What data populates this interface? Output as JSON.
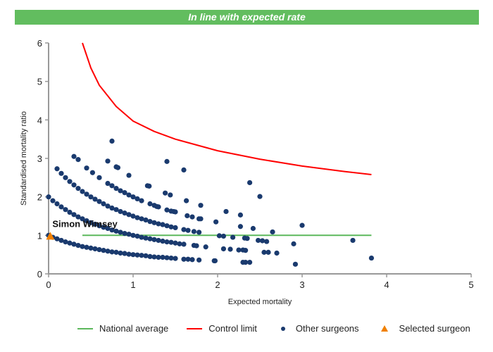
{
  "banner": {
    "text": "In line with expected rate",
    "color": "#62bd5f"
  },
  "chart_data": {
    "type": "scatter",
    "xlabel": "Expected mortality",
    "ylabel": "Standardised mortality ratio",
    "xlim": [
      0,
      5
    ],
    "ylim": [
      0,
      6
    ],
    "xticks": [
      "0",
      "1",
      "2",
      "3",
      "4",
      "5"
    ],
    "yticks": [
      "0",
      "1",
      "2",
      "3",
      "4",
      "5",
      "6"
    ],
    "grid": false,
    "legend_placement": "bottom",
    "colors": {
      "national_average": "#5cb85c",
      "control_limit": "#ff0000",
      "other_surgeons": "#1a3a6e",
      "selected_surgeon": "#f08000"
    },
    "legend": [
      "National average",
      "Control limit",
      "Other surgeons",
      "Selected surgeon"
    ],
    "national_average": {
      "name": "National average",
      "points": [
        [
          0.4,
          1
        ],
        [
          3.82,
          1
        ]
      ]
    },
    "control_limit": {
      "name": "Control limit",
      "points": [
        [
          0.4,
          6.0
        ],
        [
          0.5,
          5.35
        ],
        [
          0.6,
          4.9
        ],
        [
          0.8,
          4.35
        ],
        [
          1.0,
          3.97
        ],
        [
          1.25,
          3.7
        ],
        [
          1.5,
          3.5
        ],
        [
          2.0,
          3.2
        ],
        [
          2.5,
          2.98
        ],
        [
          3.0,
          2.8
        ],
        [
          3.5,
          2.66
        ],
        [
          3.82,
          2.58
        ]
      ]
    },
    "other_surgeons": {
      "name": "Other surgeons",
      "points": [
        [
          0,
          1.0
        ],
        [
          0.05,
          0.95
        ],
        [
          0.1,
          0.91
        ],
        [
          0.15,
          0.87
        ],
        [
          0.2,
          0.83
        ],
        [
          0.25,
          0.8
        ],
        [
          0.3,
          0.77
        ],
        [
          0.35,
          0.74
        ],
        [
          0.4,
          0.71
        ],
        [
          0.45,
          0.69
        ],
        [
          0.5,
          0.67
        ],
        [
          0.55,
          0.65
        ],
        [
          0.6,
          0.63
        ],
        [
          0.65,
          0.61
        ],
        [
          0.7,
          0.59
        ],
        [
          0.75,
          0.57
        ],
        [
          0.8,
          0.56
        ],
        [
          0.85,
          0.54
        ],
        [
          0.9,
          0.53
        ],
        [
          0.95,
          0.51
        ],
        [
          1.0,
          0.5
        ],
        [
          1.05,
          0.49
        ],
        [
          1.1,
          0.48
        ],
        [
          1.15,
          0.47
        ],
        [
          1.2,
          0.45
        ],
        [
          1.25,
          0.44
        ],
        [
          1.3,
          0.43
        ],
        [
          1.35,
          0.43
        ],
        [
          1.4,
          0.42
        ],
        [
          1.45,
          0.41
        ],
        [
          1.5,
          0.4
        ],
        [
          1.6,
          0.38
        ],
        [
          1.65,
          0.38
        ],
        [
          1.7,
          0.37
        ],
        [
          1.78,
          0.36
        ],
        [
          1.96,
          0.34
        ],
        [
          1.97,
          0.34
        ],
        [
          0,
          2.0
        ],
        [
          0.05,
          1.9
        ],
        [
          0.1,
          1.82
        ],
        [
          0.15,
          1.74
        ],
        [
          0.2,
          1.67
        ],
        [
          0.25,
          1.6
        ],
        [
          0.3,
          1.54
        ],
        [
          0.35,
          1.48
        ],
        [
          0.4,
          1.43
        ],
        [
          0.45,
          1.38
        ],
        [
          0.5,
          1.33
        ],
        [
          0.55,
          1.29
        ],
        [
          0.6,
          1.25
        ],
        [
          0.65,
          1.21
        ],
        [
          0.7,
          1.18
        ],
        [
          0.75,
          1.14
        ],
        [
          0.8,
          1.11
        ],
        [
          0.85,
          1.08
        ],
        [
          0.9,
          1.05
        ],
        [
          0.95,
          1.03
        ],
        [
          1.0,
          1.0
        ],
        [
          1.05,
          0.98
        ],
        [
          1.1,
          0.95
        ],
        [
          1.15,
          0.93
        ],
        [
          1.2,
          0.91
        ],
        [
          1.25,
          0.89
        ],
        [
          1.3,
          0.87
        ],
        [
          1.35,
          0.85
        ],
        [
          1.4,
          0.83
        ],
        [
          1.45,
          0.82
        ],
        [
          1.5,
          0.8
        ],
        [
          1.55,
          0.78
        ],
        [
          1.6,
          0.77
        ],
        [
          1.72,
          0.74
        ],
        [
          1.75,
          0.73
        ],
        [
          1.86,
          0.7
        ],
        [
          0.1,
          2.73
        ],
        [
          0.15,
          2.61
        ],
        [
          0.2,
          2.5
        ],
        [
          0.25,
          2.4
        ],
        [
          0.3,
          2.31
        ],
        [
          0.35,
          2.22
        ],
        [
          0.4,
          2.14
        ],
        [
          0.45,
          2.07
        ],
        [
          0.5,
          2.0
        ],
        [
          0.55,
          1.94
        ],
        [
          0.6,
          1.88
        ],
        [
          0.65,
          1.82
        ],
        [
          0.7,
          1.76
        ],
        [
          0.75,
          1.71
        ],
        [
          0.8,
          1.67
        ],
        [
          0.85,
          1.62
        ],
        [
          0.9,
          1.58
        ],
        [
          0.95,
          1.54
        ],
        [
          1.0,
          1.5
        ],
        [
          1.05,
          1.46
        ],
        [
          1.1,
          1.43
        ],
        [
          1.15,
          1.4
        ],
        [
          1.2,
          1.36
        ],
        [
          1.25,
          1.33
        ],
        [
          1.3,
          1.3
        ],
        [
          1.35,
          1.28
        ],
        [
          1.4,
          1.25
        ],
        [
          1.45,
          1.22
        ],
        [
          1.5,
          1.2
        ],
        [
          1.6,
          1.15
        ],
        [
          1.65,
          1.13
        ],
        [
          1.72,
          1.1
        ],
        [
          1.78,
          1.08
        ],
        [
          0.3,
          3.05
        ],
        [
          0.7,
          2.35
        ],
        [
          0.75,
          2.29
        ],
        [
          0.8,
          2.22
        ],
        [
          0.85,
          2.16
        ],
        [
          0.9,
          2.11
        ],
        [
          0.95,
          2.05
        ],
        [
          1.0,
          2.0
        ],
        [
          1.05,
          1.95
        ],
        [
          1.1,
          1.9
        ],
        [
          1.2,
          1.82
        ],
        [
          1.25,
          1.78
        ],
        [
          1.3,
          1.74
        ],
        [
          1.4,
          1.66
        ],
        [
          1.45,
          1.63
        ],
        [
          1.5,
          1.61
        ],
        [
          0.75,
          3.45
        ],
        [
          0.35,
          2.97
        ],
        [
          0.45,
          2.75
        ],
        [
          0.52,
          2.63
        ],
        [
          0.6,
          2.5
        ],
        [
          0.7,
          2.93
        ],
        [
          0.8,
          2.78
        ],
        [
          0.82,
          2.76
        ],
        [
          0.95,
          2.56
        ],
        [
          1.17,
          2.29
        ],
        [
          1.19,
          2.28
        ],
        [
          1.4,
          2.92
        ],
        [
          1.38,
          2.1
        ],
        [
          1.44,
          2.05
        ],
        [
          1.6,
          2.7
        ],
        [
          1.63,
          1.9
        ],
        [
          1.8,
          1.78
        ],
        [
          1.64,
          1.51
        ],
        [
          1.7,
          1.48
        ],
        [
          1.78,
          1.43
        ],
        [
          1.8,
          1.43
        ],
        [
          1.28,
          1.75
        ],
        [
          1.48,
          1.62
        ],
        [
          1.98,
          1.35
        ],
        [
          2.02,
          0.99
        ],
        [
          2.07,
          0.98
        ],
        [
          2.1,
          1.62
        ],
        [
          2.18,
          0.95
        ],
        [
          2.27,
          1.53
        ],
        [
          2.27,
          1.23
        ],
        [
          2.32,
          0.93
        ],
        [
          2.35,
          0.92
        ],
        [
          2.38,
          2.37
        ],
        [
          2.42,
          1.18
        ],
        [
          2.5,
          2.01
        ],
        [
          2.48,
          0.87
        ],
        [
          2.53,
          0.86
        ],
        [
          2.58,
          0.84
        ],
        [
          2.65,
          1.09
        ],
        [
          2.07,
          0.65
        ],
        [
          2.15,
          0.64
        ],
        [
          2.25,
          0.62
        ],
        [
          2.3,
          0.62
        ],
        [
          2.33,
          0.61
        ],
        [
          2.55,
          0.56
        ],
        [
          2.6,
          0.56
        ],
        [
          2.7,
          0.54
        ],
        [
          2.3,
          0.3
        ],
        [
          2.33,
          0.3
        ],
        [
          2.38,
          0.3
        ],
        [
          2.9,
          0.78
        ],
        [
          2.92,
          0.25
        ],
        [
          3.0,
          1.26
        ],
        [
          3.6,
          0.87
        ],
        [
          3.82,
          0.41
        ]
      ]
    },
    "selected_surgeon": {
      "name": "Selected surgeon",
      "label": "Simon Wimsey",
      "point": [
        0.02,
        0.98
      ]
    }
  }
}
